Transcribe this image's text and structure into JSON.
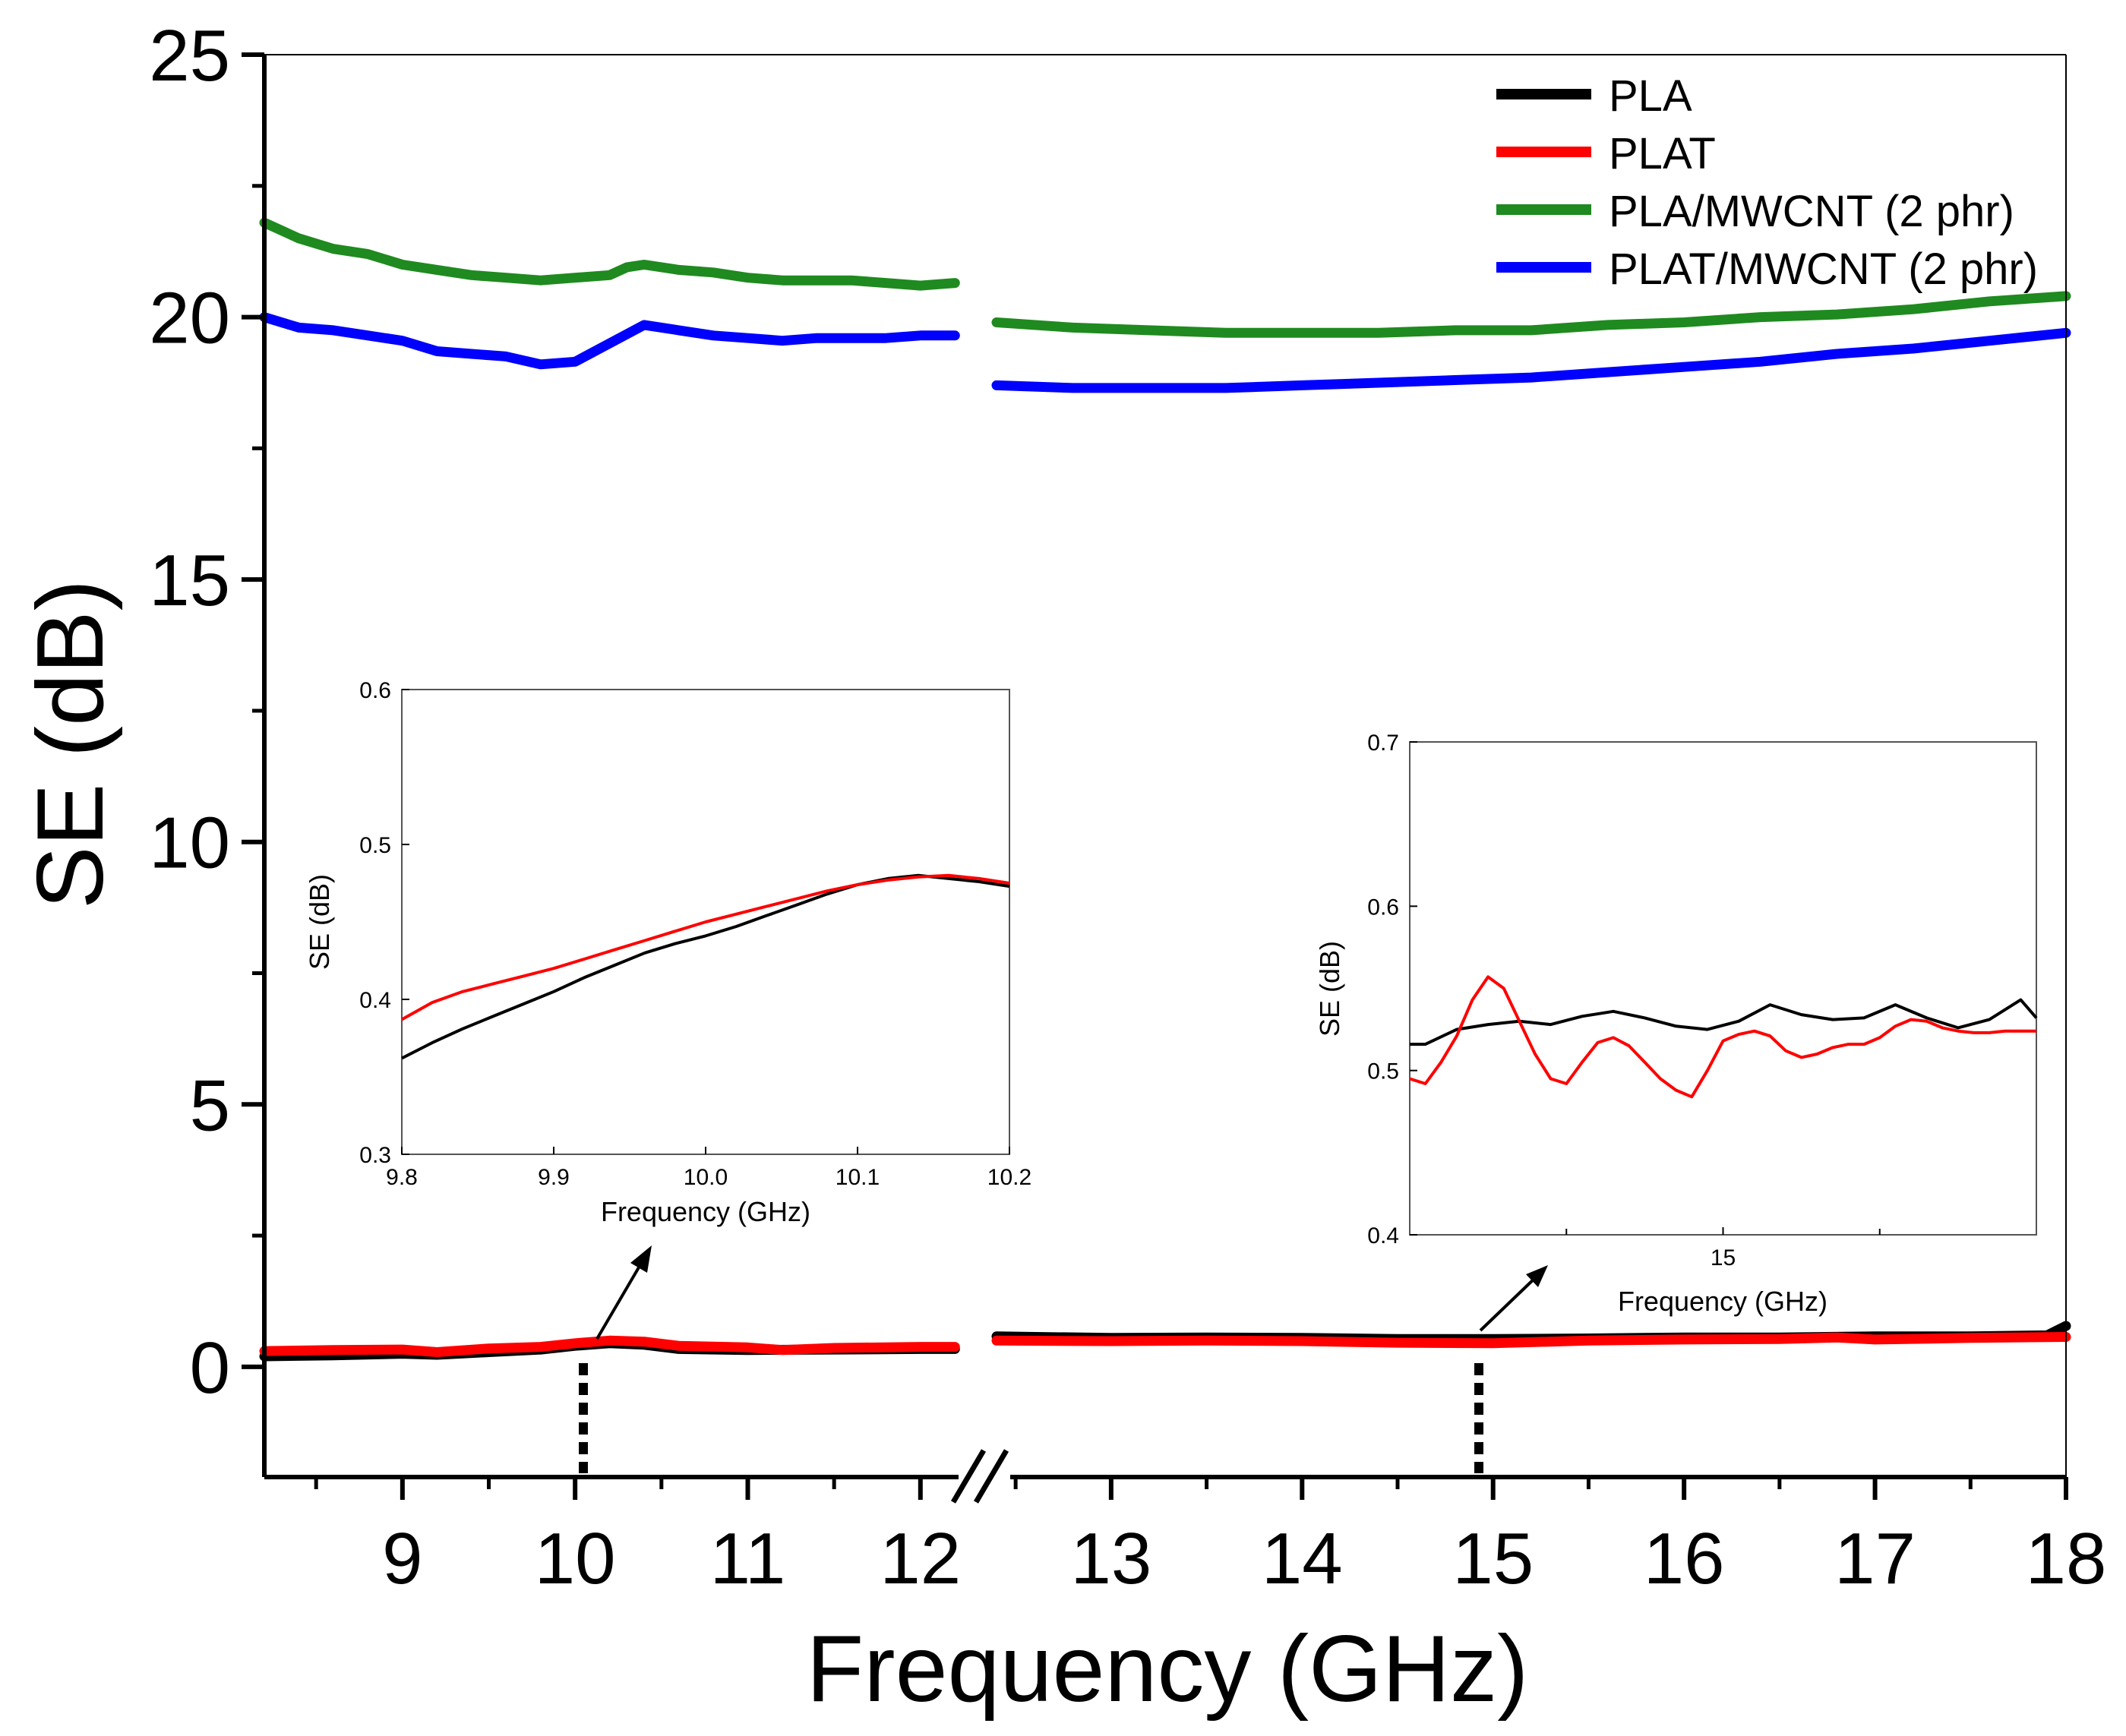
{
  "chart_data": [
    {
      "type": "line",
      "role": "main",
      "xlabel": "Frequency (GHz)",
      "ylabel": "SE (dB)",
      "xlim": [
        8.2,
        18
      ],
      "ylim": [
        -2.1,
        25
      ],
      "axis_break": {
        "at": 12.3,
        "resume": 12.4
      },
      "xticks": [
        9,
        10,
        11,
        12,
        13,
        14,
        15,
        16,
        17,
        18
      ],
      "yticks": [
        0,
        5,
        10,
        15,
        20,
        25
      ],
      "legend_position": "top-right",
      "colors": {
        "PLA": "#000000",
        "PLAT": "#ff0000",
        "PLA/MWCNT (2 phr)": "#1f8a1f",
        "PLAT/MWCNT (2 phr)": "#0000ff"
      },
      "series": [
        {
          "name": "PLA",
          "segments": [
            [
              [
                8.2,
                0.2
              ],
              [
                8.6,
                0.22
              ],
              [
                9.0,
                0.25
              ],
              [
                9.2,
                0.23
              ],
              [
                9.5,
                0.28
              ],
              [
                9.8,
                0.33
              ],
              [
                10.0,
                0.4
              ],
              [
                10.2,
                0.45
              ],
              [
                10.4,
                0.42
              ],
              [
                10.6,
                0.34
              ],
              [
                11.0,
                0.32
              ],
              [
                11.5,
                0.33
              ],
              [
                12.0,
                0.34
              ],
              [
                12.2,
                0.34
              ]
            ],
            [
              [
                12.4,
                0.58
              ],
              [
                13.0,
                0.55
              ],
              [
                13.5,
                0.56
              ],
              [
                14.0,
                0.55
              ],
              [
                14.5,
                0.53
              ],
              [
                15.0,
                0.53
              ],
              [
                15.5,
                0.54
              ],
              [
                16.0,
                0.56
              ],
              [
                16.5,
                0.56
              ],
              [
                17.0,
                0.58
              ],
              [
                17.5,
                0.58
              ],
              [
                17.9,
                0.6
              ],
              [
                18.0,
                0.78
              ]
            ]
          ]
        },
        {
          "name": "PLAT",
          "segments": [
            [
              [
                8.2,
                0.3
              ],
              [
                8.6,
                0.32
              ],
              [
                9.0,
                0.33
              ],
              [
                9.2,
                0.28
              ],
              [
                9.5,
                0.35
              ],
              [
                9.8,
                0.38
              ],
              [
                10.0,
                0.45
              ],
              [
                10.2,
                0.5
              ],
              [
                10.4,
                0.48
              ],
              [
                10.6,
                0.4
              ],
              [
                11.0,
                0.37
              ],
              [
                11.2,
                0.32
              ],
              [
                11.5,
                0.36
              ],
              [
                12.0,
                0.38
              ],
              [
                12.2,
                0.38
              ]
            ],
            [
              [
                12.4,
                0.5
              ],
              [
                13.0,
                0.49
              ],
              [
                13.5,
                0.5
              ],
              [
                14.0,
                0.49
              ],
              [
                14.5,
                0.46
              ],
              [
                15.0,
                0.45
              ],
              [
                15.5,
                0.5
              ],
              [
                16.0,
                0.52
              ],
              [
                16.5,
                0.53
              ],
              [
                16.8,
                0.56
              ],
              [
                17.0,
                0.52
              ],
              [
                17.5,
                0.55
              ],
              [
                18.0,
                0.57
              ]
            ]
          ]
        },
        {
          "name": "PLA/MWCNT (2 phr)",
          "segments": [
            [
              [
                8.2,
                21.8
              ],
              [
                8.4,
                21.5
              ],
              [
                8.6,
                21.3
              ],
              [
                8.8,
                21.2
              ],
              [
                9.0,
                21.0
              ],
              [
                9.2,
                20.9
              ],
              [
                9.4,
                20.8
              ],
              [
                9.6,
                20.75
              ],
              [
                9.8,
                20.7
              ],
              [
                10.0,
                20.75
              ],
              [
                10.2,
                20.8
              ],
              [
                10.3,
                20.95
              ],
              [
                10.4,
                21.0
              ],
              [
                10.6,
                20.9
              ],
              [
                10.8,
                20.85
              ],
              [
                11.0,
                20.75
              ],
              [
                11.2,
                20.7
              ],
              [
                11.4,
                20.7
              ],
              [
                11.6,
                20.7
              ],
              [
                11.8,
                20.65
              ],
              [
                12.0,
                20.6
              ],
              [
                12.2,
                20.65
              ]
            ],
            [
              [
                12.4,
                19.9
              ],
              [
                12.8,
                19.8
              ],
              [
                13.2,
                19.75
              ],
              [
                13.6,
                19.7
              ],
              [
                14.0,
                19.7
              ],
              [
                14.4,
                19.7
              ],
              [
                14.8,
                19.75
              ],
              [
                15.2,
                19.75
              ],
              [
                15.6,
                19.85
              ],
              [
                16.0,
                19.9
              ],
              [
                16.4,
                20.0
              ],
              [
                16.8,
                20.05
              ],
              [
                17.2,
                20.15
              ],
              [
                17.6,
                20.3
              ],
              [
                18.0,
                20.4
              ]
            ]
          ]
        },
        {
          "name": "PLAT/MWCNT (2 phr)",
          "segments": [
            [
              [
                8.2,
                20.0
              ],
              [
                8.4,
                19.8
              ],
              [
                8.6,
                19.75
              ],
              [
                8.8,
                19.65
              ],
              [
                9.0,
                19.55
              ],
              [
                9.2,
                19.35
              ],
              [
                9.4,
                19.3
              ],
              [
                9.6,
                19.25
              ],
              [
                9.8,
                19.1
              ],
              [
                10.0,
                19.15
              ],
              [
                10.2,
                19.5
              ],
              [
                10.4,
                19.85
              ],
              [
                10.6,
                19.75
              ],
              [
                10.8,
                19.65
              ],
              [
                11.0,
                19.6
              ],
              [
                11.2,
                19.55
              ],
              [
                11.4,
                19.6
              ],
              [
                11.6,
                19.6
              ],
              [
                11.8,
                19.6
              ],
              [
                12.0,
                19.65
              ],
              [
                12.2,
                19.65
              ]
            ],
            [
              [
                12.4,
                18.7
              ],
              [
                12.8,
                18.65
              ],
              [
                13.2,
                18.65
              ],
              [
                13.6,
                18.65
              ],
              [
                14.0,
                18.7
              ],
              [
                14.4,
                18.75
              ],
              [
                14.8,
                18.8
              ],
              [
                15.2,
                18.85
              ],
              [
                15.6,
                18.95
              ],
              [
                16.0,
                19.05
              ],
              [
                16.4,
                19.15
              ],
              [
                16.8,
                19.3
              ],
              [
                17.2,
                19.4
              ],
              [
                17.6,
                19.55
              ],
              [
                18.0,
                19.7
              ]
            ]
          ]
        }
      ]
    },
    {
      "type": "line",
      "role": "inset",
      "xlabel": "Frequency (GHz)",
      "ylabel": "SE (dB)",
      "xlim": [
        9.8,
        10.2
      ],
      "ylim": [
        0.3,
        0.6
      ],
      "xticks": [
        "9.8",
        "9.9",
        "10.0",
        "10.1",
        "10.2"
      ],
      "yticks": [
        "0.3",
        "0.4",
        "0.5",
        "0.6"
      ],
      "series": [
        {
          "name": "PLA",
          "x": [
            9.8,
            9.82,
            9.84,
            9.86,
            9.88,
            9.9,
            9.92,
            9.94,
            9.96,
            9.98,
            10.0,
            10.02,
            10.04,
            10.06,
            10.08,
            10.1,
            10.12,
            10.14,
            10.16,
            10.18,
            10.2
          ],
          "y": [
            0.362,
            0.372,
            0.381,
            0.389,
            0.397,
            0.405,
            0.414,
            0.422,
            0.43,
            0.436,
            0.441,
            0.447,
            0.454,
            0.461,
            0.468,
            0.474,
            0.478,
            0.48,
            0.478,
            0.476,
            0.473
          ]
        },
        {
          "name": "PLAT",
          "x": [
            9.8,
            9.82,
            9.84,
            9.86,
            9.88,
            9.9,
            9.92,
            9.94,
            9.96,
            9.98,
            10.0,
            10.02,
            10.04,
            10.06,
            10.08,
            10.1,
            10.12,
            10.14,
            10.16,
            10.18,
            10.2
          ],
          "y": [
            0.387,
            0.398,
            0.405,
            0.41,
            0.415,
            0.42,
            0.426,
            0.432,
            0.438,
            0.444,
            0.45,
            0.455,
            0.46,
            0.465,
            0.47,
            0.474,
            0.477,
            0.479,
            0.48,
            0.478,
            0.475
          ]
        }
      ]
    },
    {
      "type": "line",
      "role": "inset",
      "xlabel": "Frequency (GHz)",
      "ylabel": "SE (dB)",
      "xlim": [
        14.0,
        16.0
      ],
      "ylim": [
        0.4,
        0.7
      ],
      "xticks": [
        "15"
      ],
      "yticks": [
        "0.4",
        "0.5",
        "0.6",
        "0.7"
      ],
      "series": [
        {
          "name": "PLA",
          "x": [
            14.0,
            14.05,
            14.15,
            14.25,
            14.35,
            14.45,
            14.55,
            14.65,
            14.75,
            14.85,
            14.95,
            15.05,
            15.15,
            15.25,
            15.35,
            15.45,
            15.55,
            15.65,
            15.75,
            15.85,
            15.95,
            16.0
          ],
          "y": [
            0.516,
            0.516,
            0.525,
            0.528,
            0.53,
            0.528,
            0.533,
            0.536,
            0.532,
            0.527,
            0.525,
            0.53,
            0.54,
            0.534,
            0.531,
            0.532,
            0.54,
            0.532,
            0.526,
            0.531,
            0.543,
            0.532
          ]
        },
        {
          "name": "PLAT",
          "x": [
            14.0,
            14.05,
            14.1,
            14.15,
            14.2,
            14.25,
            14.3,
            14.35,
            14.4,
            14.45,
            14.5,
            14.55,
            14.6,
            14.65,
            14.7,
            14.75,
            14.8,
            14.85,
            14.9,
            14.95,
            15.0,
            15.05,
            15.1,
            15.15,
            15.2,
            15.25,
            15.3,
            15.35,
            15.4,
            15.45,
            15.5,
            15.55,
            15.6,
            15.65,
            15.7,
            15.75,
            15.8,
            15.85,
            15.9,
            15.95,
            16.0
          ],
          "y": [
            0.495,
            0.492,
            0.505,
            0.521,
            0.543,
            0.557,
            0.55,
            0.53,
            0.51,
            0.495,
            0.492,
            0.505,
            0.517,
            0.52,
            0.515,
            0.505,
            0.495,
            0.488,
            0.484,
            0.5,
            0.518,
            0.522,
            0.524,
            0.521,
            0.512,
            0.508,
            0.51,
            0.514,
            0.516,
            0.516,
            0.52,
            0.527,
            0.531,
            0.53,
            0.526,
            0.524,
            0.523,
            0.523,
            0.524,
            0.524,
            0.524
          ]
        }
      ]
    }
  ]
}
